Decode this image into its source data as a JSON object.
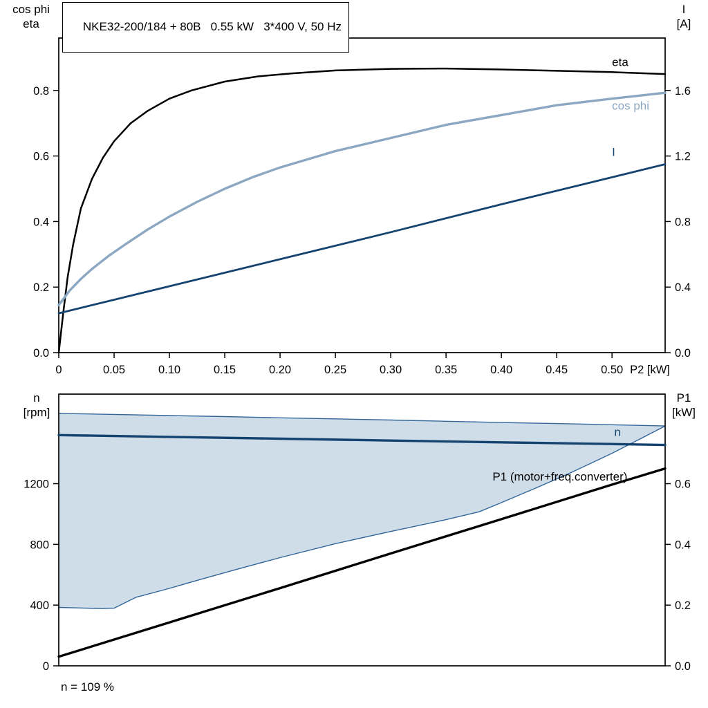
{
  "page": {
    "background": "#ffffff",
    "footer_note": "n = 109 %"
  },
  "title_box": {
    "text": "NKE32-200/184 + 80B   0.55 kW   3*400 V, 50 Hz"
  },
  "axes_titles": {
    "top_left": "cos phi\neta",
    "top_right": "I\n[A]",
    "bottom_left": "n\n[rpm]",
    "bottom_right": "P1\n[kW]"
  },
  "colors": {
    "eta": "#000000",
    "cos_phi": "#8ba7c2",
    "current": "#15436f",
    "speed": "#15436f",
    "p1": "#000000",
    "band_fill": "#cfdde9",
    "band_edge": "#336699",
    "axis": "#000000"
  },
  "chart_data": [
    {
      "id": "top",
      "type": "line",
      "title": "NKE32-200/184 + 80B   0.55 kW   3*400 V, 50 Hz",
      "xlabel": "P2 [kW]",
      "ylabel_left": "cos phi / eta",
      "ylabel_right": "I [A]",
      "xlim": [
        0,
        0.548
      ],
      "ylim_left": [
        0,
        0.96
      ],
      "ylim_right": [
        0,
        1.92
      ],
      "grid": false,
      "xticks": [
        {
          "v": 0,
          "label": "0"
        },
        {
          "v": 0.05,
          "label": "0.05"
        },
        {
          "v": 0.1,
          "label": "0.10"
        },
        {
          "v": 0.15,
          "label": "0.15"
        },
        {
          "v": 0.2,
          "label": "0.20"
        },
        {
          "v": 0.25,
          "label": "0.25"
        },
        {
          "v": 0.3,
          "label": "0.30"
        },
        {
          "v": 0.35,
          "label": "0.35"
        },
        {
          "v": 0.4,
          "label": "0.40"
        },
        {
          "v": 0.45,
          "label": "0.45"
        },
        {
          "v": 0.5,
          "label": "0.50"
        }
      ],
      "yticks_left": [
        {
          "v": 0.0,
          "label": "0.0"
        },
        {
          "v": 0.2,
          "label": "0.2"
        },
        {
          "v": 0.4,
          "label": "0.4"
        },
        {
          "v": 0.6,
          "label": "0.6"
        },
        {
          "v": 0.8,
          "label": "0.8"
        }
      ],
      "yticks_right": [
        {
          "v": 0.0,
          "label": "0.0"
        },
        {
          "v": 0.4,
          "label": "0.4"
        },
        {
          "v": 0.8,
          "label": "0.8"
        },
        {
          "v": 1.2,
          "label": "1.2"
        },
        {
          "v": 1.6,
          "label": "1.6"
        }
      ],
      "series": [
        {
          "name": "eta",
          "axis": "left",
          "color_key": "eta",
          "width": 2.5,
          "x": [
            0,
            0.004,
            0.008,
            0.013,
            0.02,
            0.03,
            0.04,
            0.05,
            0.065,
            0.08,
            0.1,
            0.12,
            0.15,
            0.18,
            0.21,
            0.25,
            0.3,
            0.35,
            0.4,
            0.45,
            0.5,
            0.548
          ],
          "y": [
            0,
            0.12,
            0.23,
            0.33,
            0.44,
            0.53,
            0.595,
            0.645,
            0.7,
            0.737,
            0.775,
            0.8,
            0.827,
            0.843,
            0.852,
            0.861,
            0.866,
            0.867,
            0.864,
            0.86,
            0.856,
            0.85
          ],
          "label": {
            "text": "eta",
            "x": 0.5,
            "y": 0.875
          }
        },
        {
          "name": "cos phi",
          "axis": "left",
          "color_key": "cos_phi",
          "width": 3.4,
          "x": [
            0,
            0.01,
            0.02,
            0.03,
            0.045,
            0.06,
            0.08,
            0.1,
            0.125,
            0.15,
            0.175,
            0.2,
            0.25,
            0.3,
            0.35,
            0.4,
            0.45,
            0.5,
            0.548
          ],
          "y": [
            0.145,
            0.19,
            0.225,
            0.255,
            0.295,
            0.33,
            0.375,
            0.415,
            0.46,
            0.5,
            0.535,
            0.565,
            0.615,
            0.655,
            0.695,
            0.725,
            0.755,
            0.775,
            0.793
          ],
          "label": {
            "text": "cos phi",
            "x": 0.5,
            "y": 0.742
          }
        },
        {
          "name": "I",
          "axis": "right",
          "color_key": "current",
          "width": 2.8,
          "x": [
            0,
            0.1,
            0.2,
            0.3,
            0.4,
            0.5,
            0.548
          ],
          "y": [
            0.24,
            0.405,
            0.57,
            0.735,
            0.905,
            1.07,
            1.15
          ],
          "label": {
            "text": "I",
            "x": 0.5,
            "y": 1.2
          }
        }
      ]
    },
    {
      "id": "bottom",
      "type": "line",
      "xlabel": "",
      "ylabel_left": "n [rpm]",
      "ylabel_right": "P1 [kW]",
      "xlim": [
        0,
        0.548
      ],
      "ylim_left": [
        0,
        1790
      ],
      "ylim_right": [
        0,
        0.895
      ],
      "grid": false,
      "xticks": [],
      "yticks_left": [
        {
          "v": 0,
          "label": "0"
        },
        {
          "v": 400,
          "label": "400"
        },
        {
          "v": 800,
          "label": "800"
        },
        {
          "v": 1200,
          "label": "1200"
        }
      ],
      "yticks_right": [
        {
          "v": 0.0,
          "label": "0.0"
        },
        {
          "v": 0.2,
          "label": "0.2"
        },
        {
          "v": 0.4,
          "label": "0.4"
        },
        {
          "v": 0.6,
          "label": "0.6"
        }
      ],
      "band": {
        "name": "speed-control-range",
        "axis": "left",
        "fill_key": "band_fill",
        "edge_key": "band_edge",
        "upper": {
          "x": [
            0,
            0.05,
            0.1,
            0.15,
            0.2,
            0.25,
            0.3,
            0.35,
            0.4,
            0.45,
            0.5,
            0.548
          ],
          "y": [
            1663,
            1656,
            1649,
            1642,
            1634,
            1627,
            1619,
            1611,
            1603,
            1596,
            1588,
            1580
          ]
        },
        "lower": {
          "x": [
            0,
            0.04,
            0.05,
            0.07,
            0.1,
            0.13,
            0.16,
            0.2,
            0.25,
            0.3,
            0.35,
            0.38,
            0.4,
            0.43,
            0.46,
            0.5,
            0.53,
            0.548
          ],
          "y": [
            385,
            377,
            380,
            452,
            510,
            573,
            634,
            713,
            805,
            885,
            963,
            1015,
            1075,
            1168,
            1263,
            1400,
            1512,
            1580
          ]
        }
      },
      "series": [
        {
          "name": "n",
          "axis": "left",
          "color_key": "speed",
          "width": 3.4,
          "x": [
            0,
            0.1,
            0.2,
            0.3,
            0.4,
            0.5,
            0.548
          ],
          "y": [
            1520,
            1508,
            1496,
            1484,
            1472,
            1461,
            1455
          ],
          "label": {
            "text": "n",
            "x": 0.502,
            "y": 1515
          }
        },
        {
          "name": "P1 (motor+freq.converter)",
          "axis": "right",
          "color_key": "p1",
          "width": 3.4,
          "x": [
            0,
            0.1,
            0.2,
            0.3,
            0.4,
            0.5,
            0.548
          ],
          "y": [
            0.03,
            0.143,
            0.256,
            0.37,
            0.483,
            0.597,
            0.65
          ],
          "label": {
            "text": "P1 (motor+freq.converter)",
            "x": 0.392,
            "y": 0.61
          }
        }
      ]
    }
  ]
}
